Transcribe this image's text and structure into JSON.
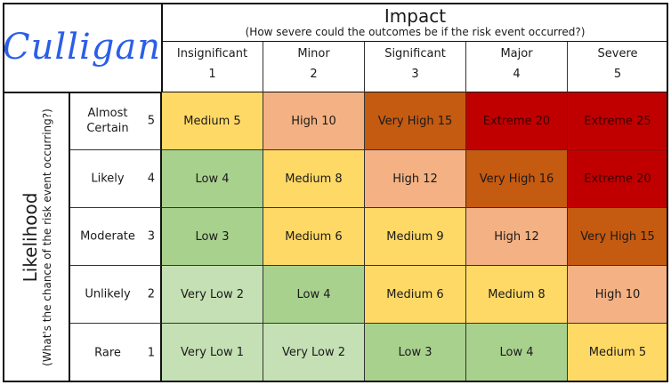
{
  "logo": {
    "text": "Culligan",
    "color": "#2b5ee8"
  },
  "impact": {
    "title": "Impact",
    "subtitle": "(How severe could the outcomes be if the risk event occurred?)",
    "columns": [
      {
        "name": "Insignificant",
        "value": "1"
      },
      {
        "name": "Minor",
        "value": "2"
      },
      {
        "name": "Significant",
        "value": "3"
      },
      {
        "name": "Major",
        "value": "4"
      },
      {
        "name": "Severe",
        "value": "5"
      }
    ]
  },
  "likelihood": {
    "title": "Likelihood",
    "subtitle": "(What's the chance of the risk event occurring?)",
    "rows": [
      {
        "name": "Almost Certain",
        "value": "5"
      },
      {
        "name": "Likely",
        "value": "4"
      },
      {
        "name": "Moderate",
        "value": "3"
      },
      {
        "name": "Unlikely",
        "value": "2"
      },
      {
        "name": "Rare",
        "value": "1"
      }
    ]
  },
  "level_colors": {
    "Very Low": "#c5e0b4",
    "Low": "#a9d18e",
    "Medium": "#ffd966",
    "High": "#f4b183",
    "Very High": "#c55a11",
    "Extreme": "#c00000"
  },
  "matrix": [
    [
      {
        "level": "Medium",
        "label": "Medium 5"
      },
      {
        "level": "High",
        "label": "High 10"
      },
      {
        "level": "Very High",
        "label": "Very High 15"
      },
      {
        "level": "Extreme",
        "label": "Extreme 20"
      },
      {
        "level": "Extreme",
        "label": "Extreme 25"
      }
    ],
    [
      {
        "level": "Low",
        "label": "Low 4"
      },
      {
        "level": "Medium",
        "label": "Medium 8"
      },
      {
        "level": "High",
        "label": "High 12"
      },
      {
        "level": "Very High",
        "label": "Very High 16"
      },
      {
        "level": "Extreme",
        "label": "Extreme 20"
      }
    ],
    [
      {
        "level": "Low",
        "label": "Low 3"
      },
      {
        "level": "Medium",
        "label": "Medium 6"
      },
      {
        "level": "Medium",
        "label": "Medium 9"
      },
      {
        "level": "High",
        "label": "High 12"
      },
      {
        "level": "Very High",
        "label": "Very High 15"
      }
    ],
    [
      {
        "level": "Very Low",
        "label": "Very Low 2"
      },
      {
        "level": "Low",
        "label": "Low 4"
      },
      {
        "level": "Medium",
        "label": "Medium 6"
      },
      {
        "level": "Medium",
        "label": "Medium 8"
      },
      {
        "level": "High",
        "label": "High 10"
      }
    ],
    [
      {
        "level": "Very Low",
        "label": "Very Low 1"
      },
      {
        "level": "Very Low",
        "label": "Very Low 2"
      },
      {
        "level": "Low",
        "label": "Low 3"
      },
      {
        "level": "Low",
        "label": "Low 4"
      },
      {
        "level": "Medium",
        "label": "Medium 5"
      }
    ]
  ]
}
